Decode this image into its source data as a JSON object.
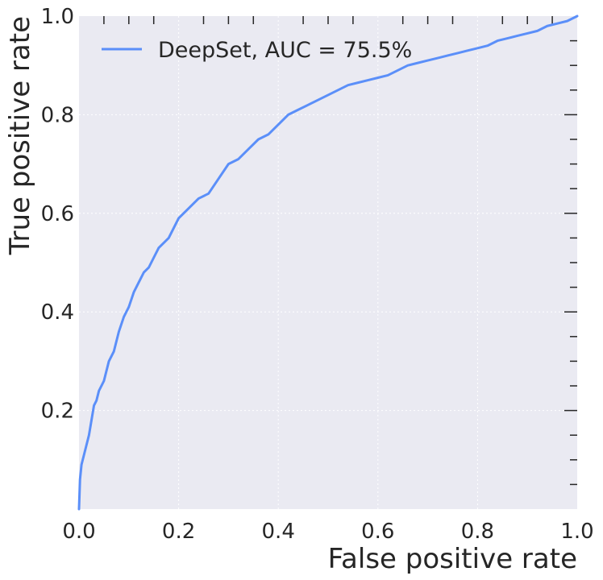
{
  "chart_data": {
    "type": "line",
    "title": "",
    "xlabel": "False positive rate",
    "ylabel": "True positive rate",
    "xlim": [
      0.0,
      1.0
    ],
    "ylim": [
      0.0,
      1.0
    ],
    "x_ticks": [
      "0.0",
      "0.2",
      "0.4",
      "0.6",
      "0.8",
      "1.0"
    ],
    "y_ticks": [
      "0.2",
      "0.4",
      "0.6",
      "0.8",
      "1.0"
    ],
    "grid": true,
    "legend_position": "top-left",
    "background_color": "#eaeaf2",
    "series": [
      {
        "name": "DeepSet, AUC = 75.5%",
        "color": "#5b8ff9",
        "x": [
          0.0,
          0.002,
          0.005,
          0.01,
          0.015,
          0.02,
          0.025,
          0.03,
          0.035,
          0.04,
          0.05,
          0.06,
          0.07,
          0.08,
          0.09,
          0.1,
          0.11,
          0.12,
          0.13,
          0.14,
          0.15,
          0.16,
          0.17,
          0.18,
          0.19,
          0.2,
          0.22,
          0.24,
          0.26,
          0.28,
          0.3,
          0.32,
          0.34,
          0.36,
          0.38,
          0.4,
          0.42,
          0.44,
          0.46,
          0.48,
          0.5,
          0.52,
          0.54,
          0.56,
          0.58,
          0.6,
          0.62,
          0.64,
          0.66,
          0.68,
          0.7,
          0.72,
          0.74,
          0.76,
          0.78,
          0.8,
          0.82,
          0.84,
          0.86,
          0.88,
          0.9,
          0.92,
          0.94,
          0.96,
          0.98,
          1.0
        ],
        "y": [
          0.0,
          0.06,
          0.09,
          0.11,
          0.13,
          0.15,
          0.18,
          0.21,
          0.22,
          0.24,
          0.26,
          0.3,
          0.32,
          0.36,
          0.39,
          0.41,
          0.44,
          0.46,
          0.48,
          0.49,
          0.51,
          0.53,
          0.54,
          0.55,
          0.57,
          0.59,
          0.61,
          0.63,
          0.64,
          0.67,
          0.7,
          0.71,
          0.73,
          0.75,
          0.76,
          0.78,
          0.8,
          0.81,
          0.82,
          0.83,
          0.84,
          0.85,
          0.86,
          0.865,
          0.87,
          0.875,
          0.88,
          0.89,
          0.9,
          0.905,
          0.91,
          0.915,
          0.92,
          0.925,
          0.93,
          0.935,
          0.94,
          0.95,
          0.955,
          0.96,
          0.965,
          0.97,
          0.98,
          0.985,
          0.99,
          1.0
        ]
      }
    ]
  }
}
